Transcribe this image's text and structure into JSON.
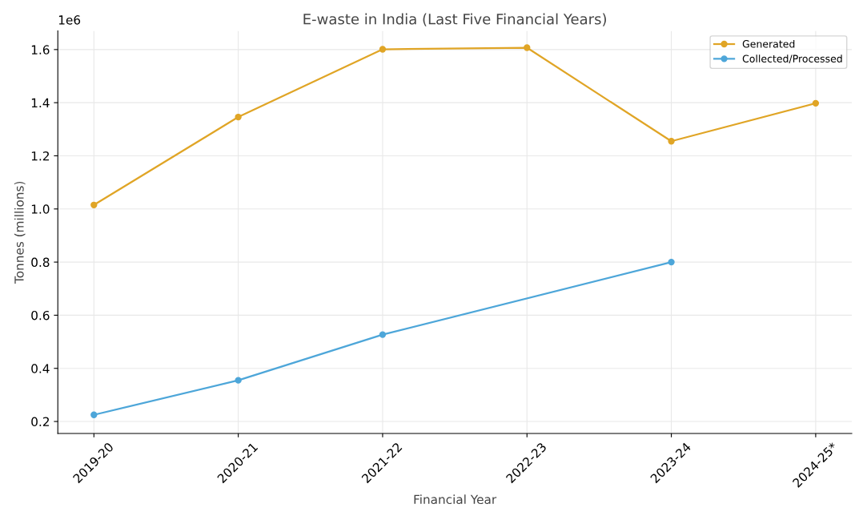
{
  "chart_data": {
    "type": "line",
    "title": "E-waste in India (Last Five Financial Years)",
    "xlabel": "Financial Year",
    "ylabel": "Tonnes (millions)",
    "annotations": [
      "1e6"
    ],
    "categories": [
      "2019-20",
      "2020-21",
      "2021-22",
      "2022-23",
      "2023-24",
      "2024-25*"
    ],
    "series": [
      {
        "name": "Generated",
        "color": "#e0a526",
        "values": [
          1.015,
          1.346,
          1.601,
          1.607,
          1.255,
          1.398
        ]
      },
      {
        "name": "Collected/Processed",
        "color": "#4da6d9",
        "values": [
          0.225,
          0.355,
          0.527,
          null,
          0.8,
          null
        ]
      }
    ],
    "ylim": [
      0.155,
      1.67
    ],
    "yticks": [
      0.2,
      0.4,
      0.6,
      0.8,
      {
        "value": 1,
        "label": "1.0"
      },
      1.2,
      1.4,
      1.6
    ],
    "grid": true,
    "legend": "top right",
    "marker": "circle",
    "line_style": "solid"
  }
}
